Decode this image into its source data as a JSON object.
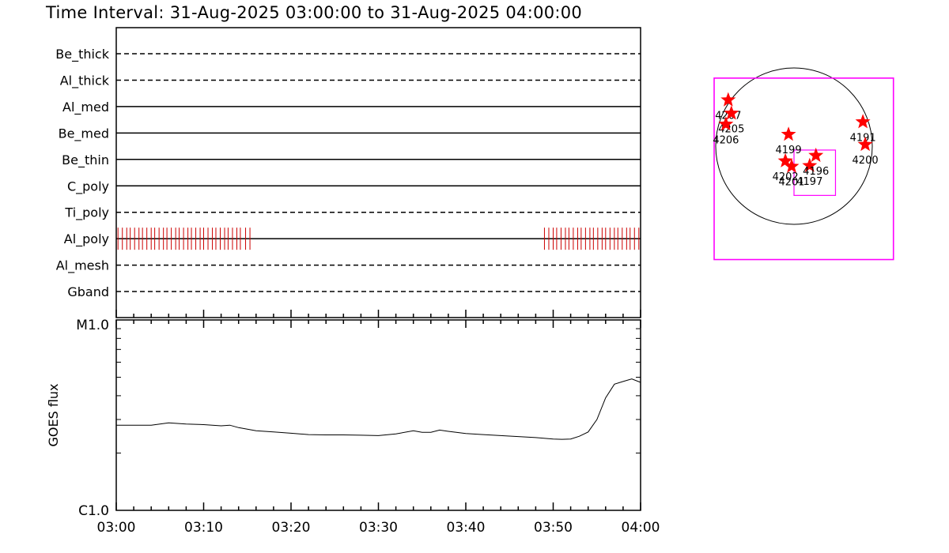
{
  "title": "Time Interval: 31-Aug-2025 03:00:00 to 31-Aug-2025 04:00:00",
  "chart_data": [
    {
      "type": "line",
      "name": "filter-timeline",
      "filters": [
        {
          "label": "Be_thick",
          "style": "dashed"
        },
        {
          "label": "Al_thick",
          "style": "dashed"
        },
        {
          "label": "Al_med",
          "style": "solid"
        },
        {
          "label": "Be_med",
          "style": "solid"
        },
        {
          "label": "Be_thin",
          "style": "solid"
        },
        {
          "label": "C_poly",
          "style": "solid"
        },
        {
          "label": "Ti_poly",
          "style": "dashed"
        },
        {
          "label": "Al_poly",
          "style": "solid"
        },
        {
          "label": "Al_mesh",
          "style": "dashed"
        },
        {
          "label": "Gband",
          "style": "dashed"
        }
      ],
      "observations": {
        "filter": "Al_poly",
        "color": "#cc0000",
        "minutes": [
          0.2,
          0.7,
          1.2,
          1.6,
          2.1,
          2.6,
          3.0,
          3.5,
          4.0,
          4.4,
          4.9,
          5.4,
          5.8,
          6.3,
          6.8,
          7.2,
          7.7,
          8.2,
          8.6,
          9.1,
          9.6,
          10.0,
          10.5,
          11.0,
          11.4,
          11.9,
          12.4,
          12.8,
          13.3,
          13.8,
          14.2,
          14.8,
          15.3,
          49.0,
          49.5,
          50.0,
          50.4,
          50.9,
          51.4,
          51.8,
          52.3,
          52.8,
          53.2,
          53.7,
          54.2,
          54.6,
          55.1,
          55.6,
          56.0,
          56.5,
          57.0,
          57.4,
          57.9,
          58.4,
          58.8,
          59.3,
          59.8
        ]
      },
      "xlim": [
        0,
        60
      ]
    },
    {
      "type": "line",
      "name": "goes-flux",
      "ylabel": "GOES flux",
      "ytick_labels": [
        "M1.0",
        "C1.0"
      ],
      "yscale": "log",
      "ylim": [
        1e-06,
        1e-05
      ],
      "x_tick_labels": [
        "03:00",
        "03:10",
        "03:20",
        "03:30",
        "03:40",
        "03:50",
        "04:00"
      ],
      "x_ticks_minutes": [
        0,
        10,
        20,
        30,
        40,
        50,
        60
      ],
      "xlim": [
        0,
        60
      ],
      "series": [
        {
          "x": [
            0,
            2,
            4,
            6,
            8,
            10,
            12,
            13,
            14,
            16,
            18,
            20,
            22,
            24,
            26,
            28,
            30,
            32,
            34,
            35,
            36,
            37,
            38,
            40,
            42,
            44,
            46,
            48,
            50,
            51,
            52,
            53,
            54,
            55,
            56,
            57,
            58,
            59,
            60
          ],
          "y": [
            2.8e-06,
            2.8e-06,
            2.8e-06,
            2.88e-06,
            2.84e-06,
            2.82e-06,
            2.78e-06,
            2.8e-06,
            2.72e-06,
            2.62e-06,
            2.58e-06,
            2.54e-06,
            2.5e-06,
            2.49e-06,
            2.49e-06,
            2.48e-06,
            2.47e-06,
            2.52e-06,
            2.62e-06,
            2.57e-06,
            2.57e-06,
            2.64e-06,
            2.6e-06,
            2.53e-06,
            2.5e-06,
            2.47e-06,
            2.44e-06,
            2.41e-06,
            2.37e-06,
            2.36e-06,
            2.37e-06,
            2.45e-06,
            2.58e-06,
            3e-06,
            3.9e-06,
            4.6e-06,
            4.75e-06,
            4.9e-06,
            4.7e-06
          ]
        }
      ]
    },
    {
      "type": "scatter",
      "name": "solar-disk-map",
      "marker_color": "#ff0000",
      "box_color": "#ff00ff",
      "regions": [
        {
          "label": "4207",
          "x": -0.84,
          "y": 0.59
        },
        {
          "label": "4205",
          "x": -0.8,
          "y": 0.42
        },
        {
          "label": "4206",
          "x": -0.87,
          "y": 0.28
        },
        {
          "label": "4199",
          "x": -0.07,
          "y": 0.15
        },
        {
          "label": "4202",
          "x": -0.11,
          "y": -0.19
        },
        {
          "label": "4201",
          "x": -0.03,
          "y": -0.26
        },
        {
          "label": "4197",
          "x": 0.2,
          "y": -0.25
        },
        {
          "label": "4196",
          "x": 0.28,
          "y": -0.12
        },
        {
          "label": "4191",
          "x": 0.88,
          "y": 0.31
        },
        {
          "label": "4200",
          "x": 0.91,
          "y": 0.02
        }
      ],
      "fov_outer": {
        "x0": -1.02,
        "y0": -1.45,
        "x1": 1.27,
        "y1": 0.87
      },
      "fov_inner": {
        "x0": 0.0,
        "y0": -0.63,
        "x1": 0.53,
        "y1": -0.05
      }
    }
  ]
}
